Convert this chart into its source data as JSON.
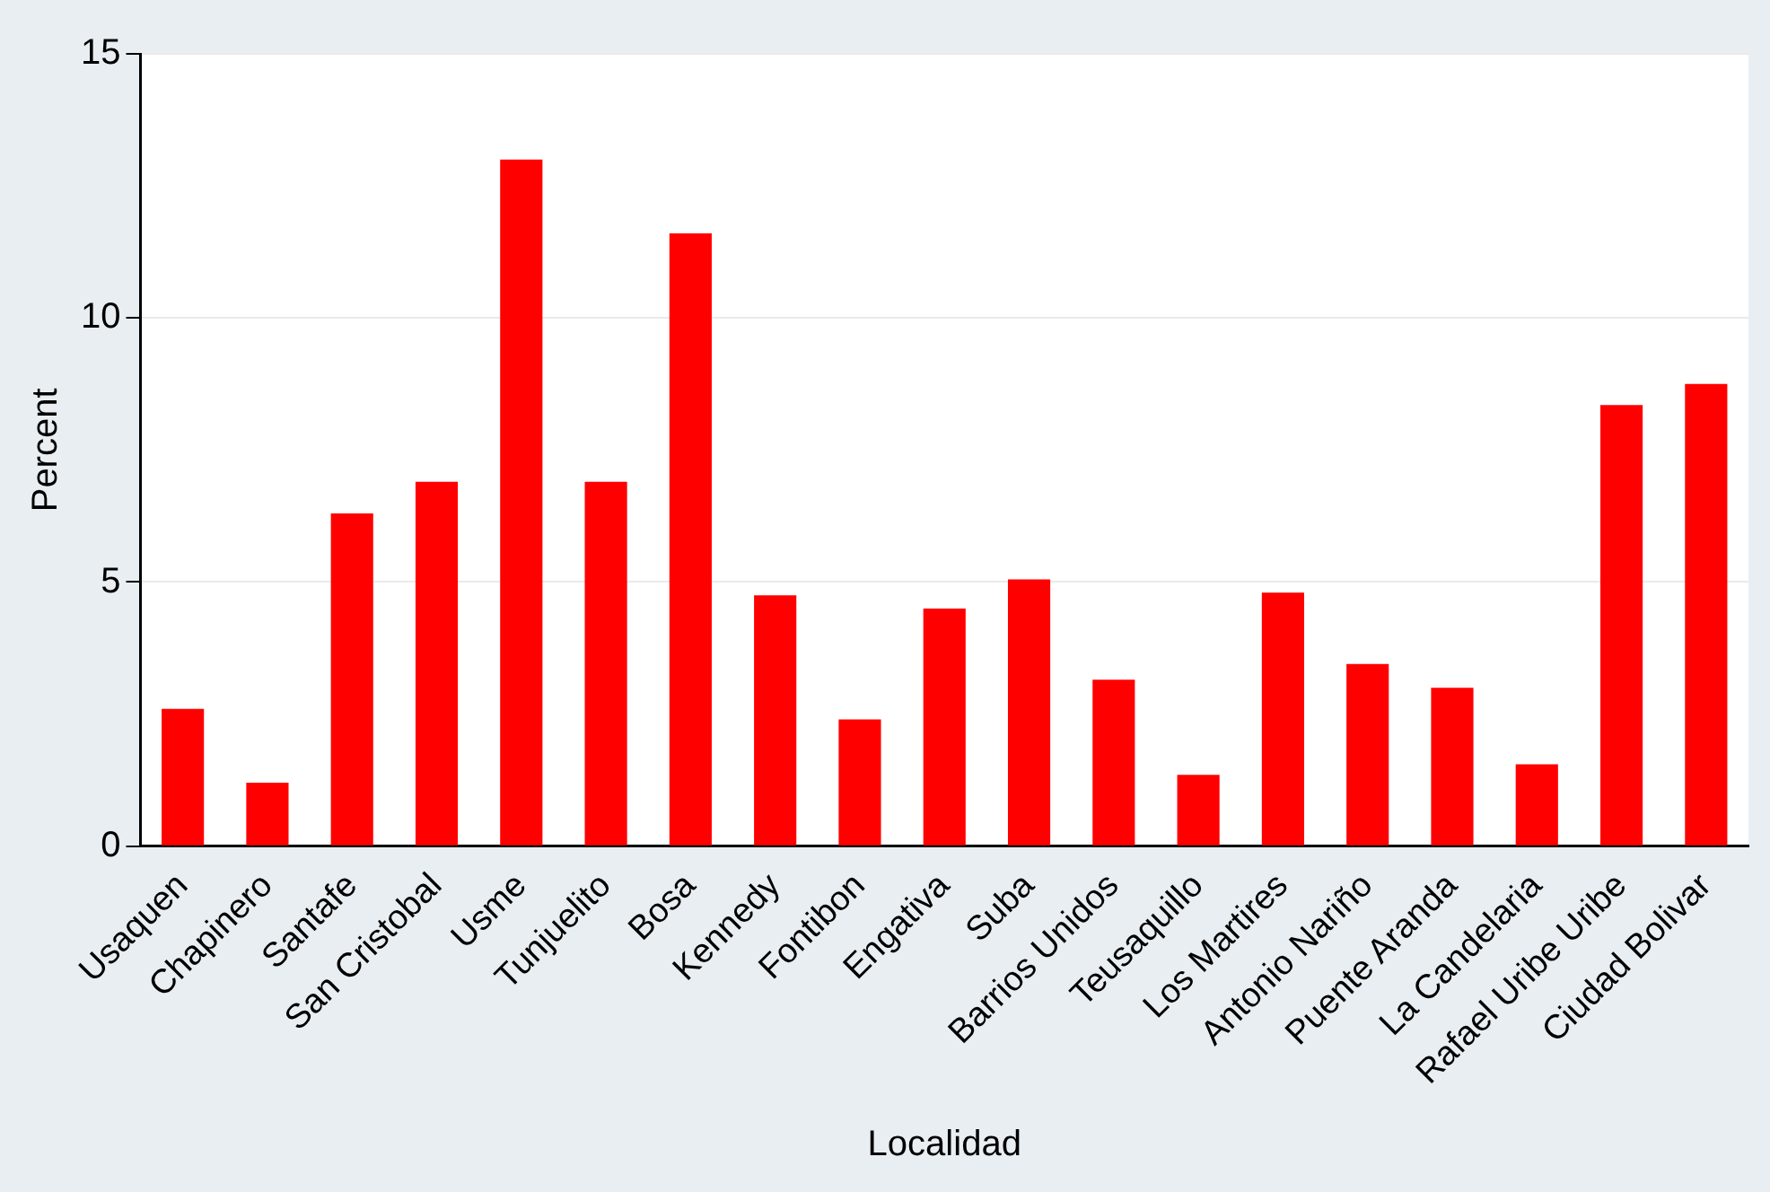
{
  "chart_data": {
    "type": "bar",
    "xlabel": "Localidad",
    "ylabel": "Percent",
    "categories": [
      "Usaquen",
      "Chapinero",
      "Santafe",
      "San Cristobal",
      "Usme",
      "Tunjuelito",
      "Bosa",
      "Kennedy",
      "Fontibon",
      "Engativa",
      "Suba",
      "Barrios Unidos",
      "Teusaquillo",
      "Los Martires",
      "Antonio Nariño",
      "Puente Aranda",
      "La Candelaria",
      "Rafael Uribe Uribe",
      "Ciudad Bolivar"
    ],
    "values": [
      2.6,
      1.2,
      6.3,
      6.9,
      13.0,
      6.9,
      11.6,
      4.75,
      2.4,
      4.5,
      5.05,
      3.15,
      1.35,
      4.8,
      3.45,
      3.0,
      1.55,
      8.35,
      8.75
    ],
    "color": "#ff0000",
    "ylim": [
      0,
      15
    ],
    "yticks": [
      0,
      5,
      10,
      15
    ],
    "grid": "y",
    "legend": false
  }
}
